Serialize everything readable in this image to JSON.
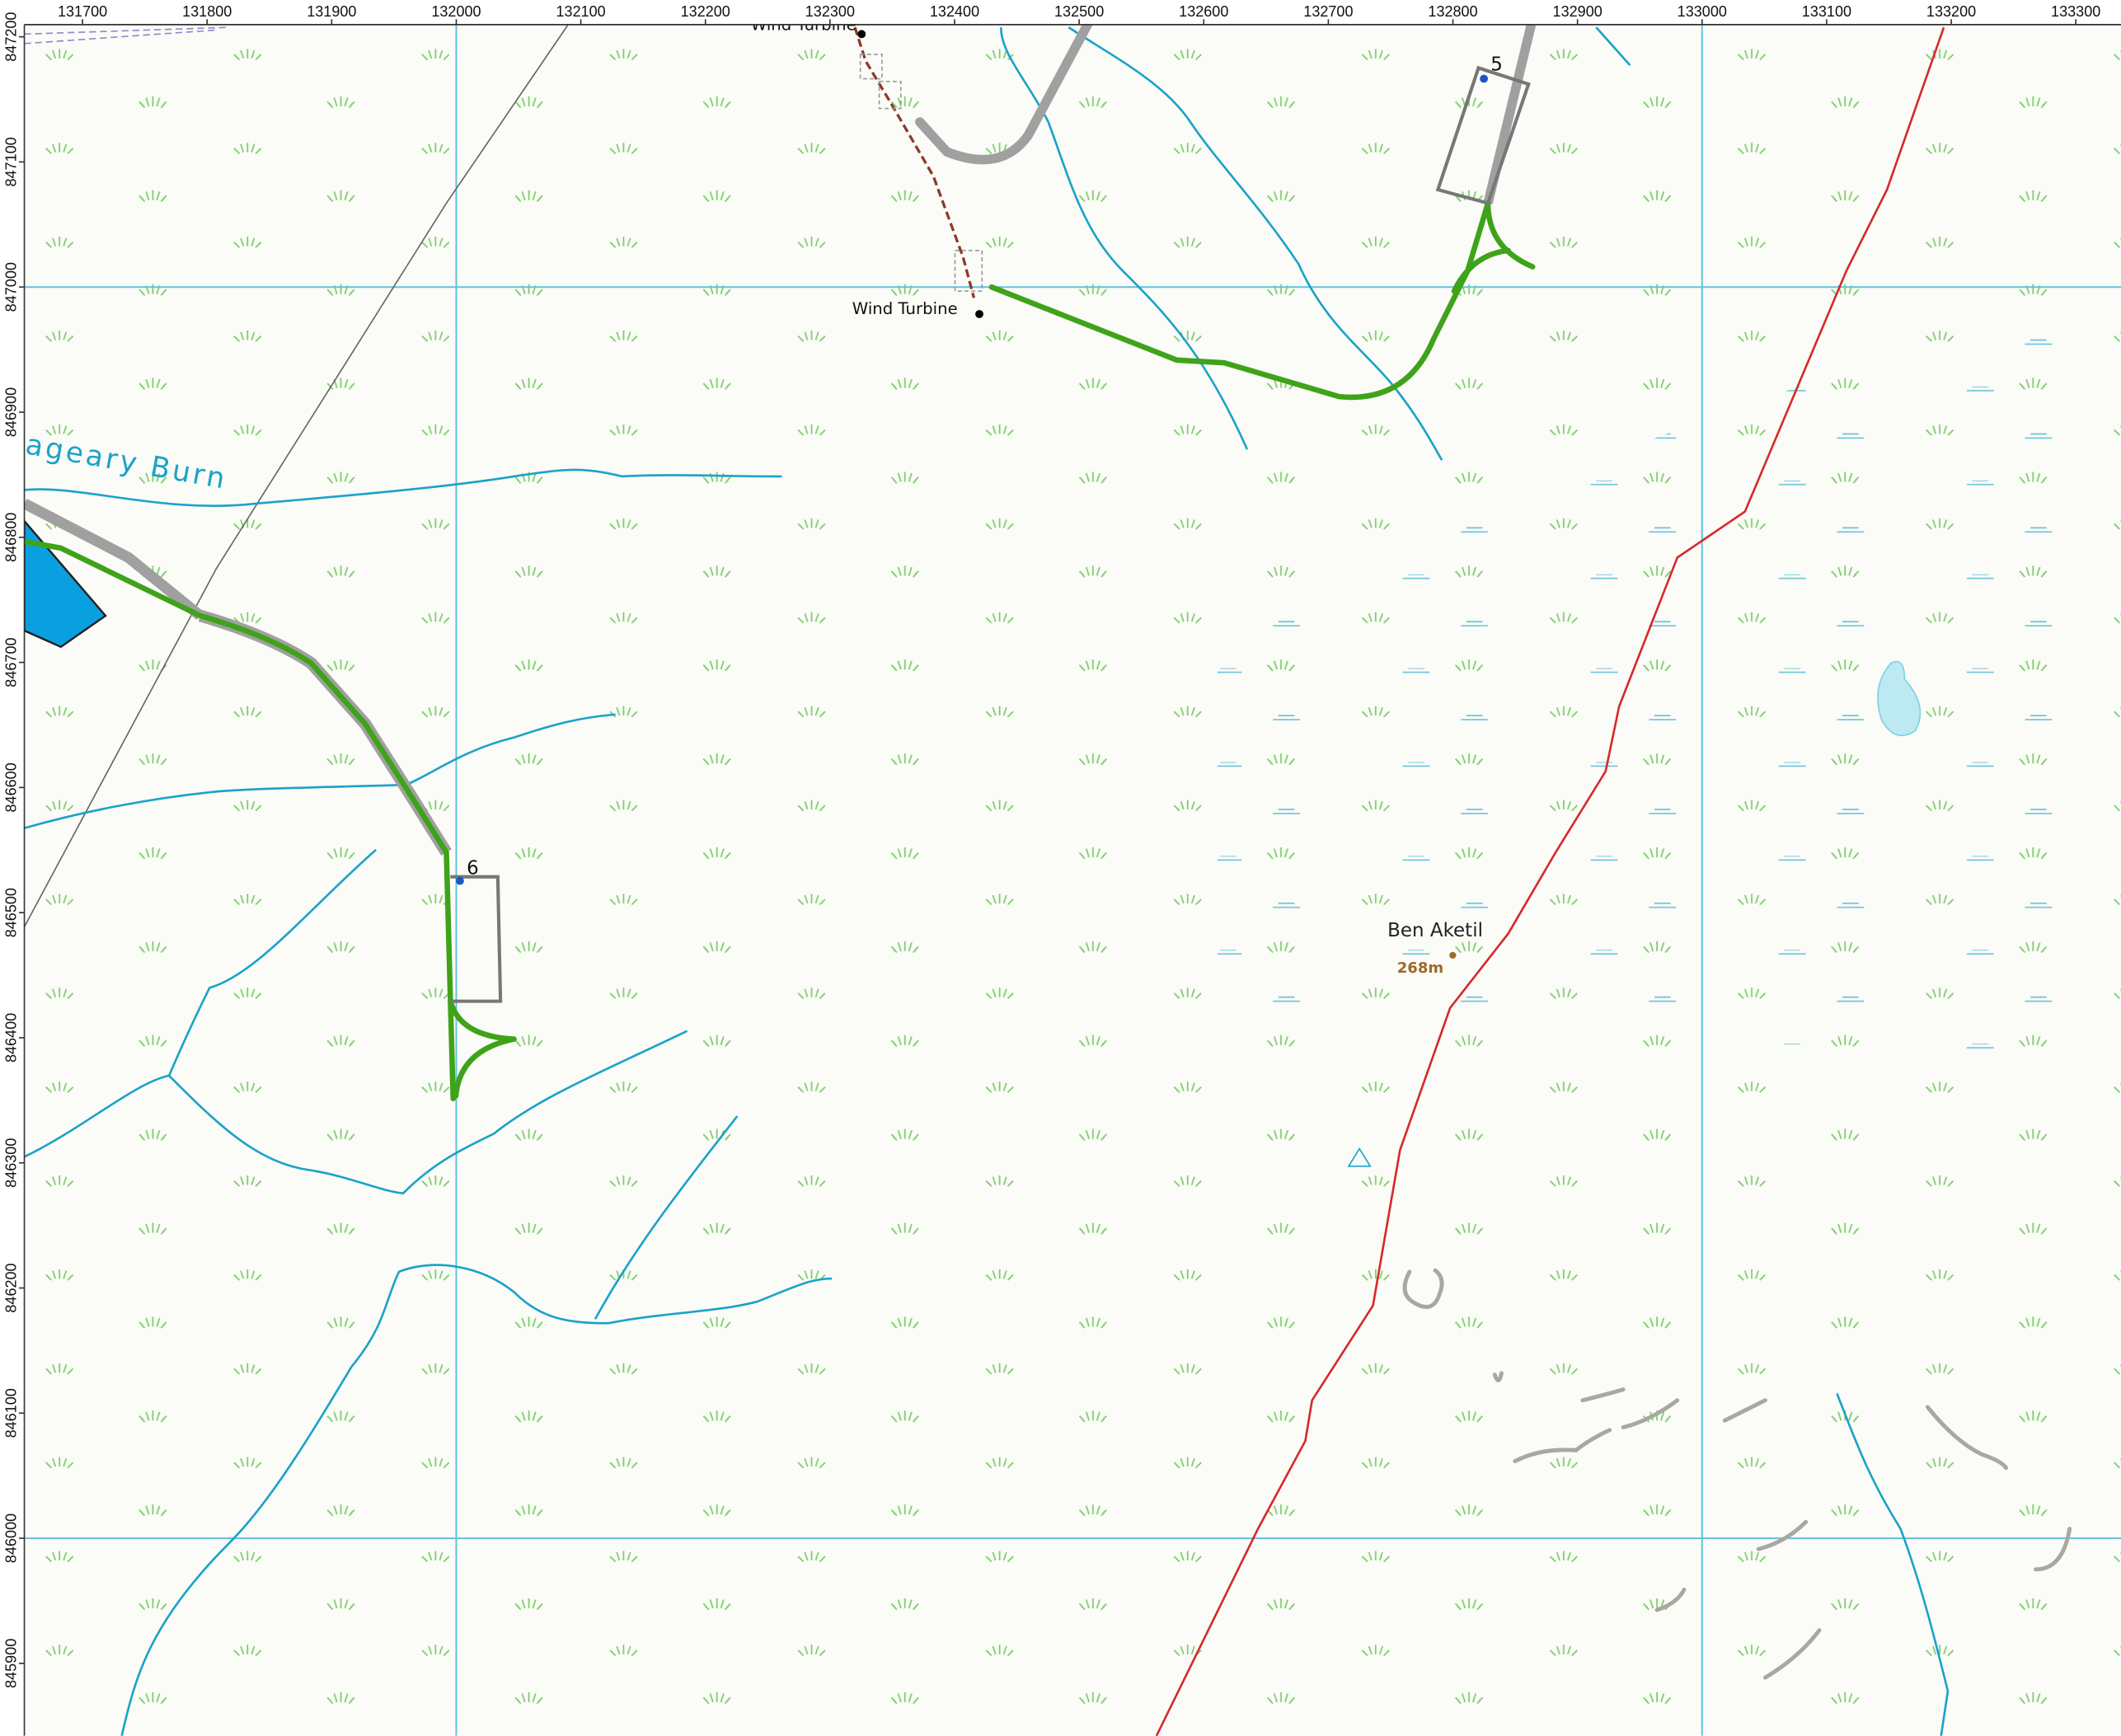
{
  "x_axis": {
    "ticks": [
      131700,
      131800,
      131900,
      132000,
      132100,
      132200,
      132300,
      132400,
      132500,
      132600,
      132700,
      132800,
      132900,
      133000,
      133100,
      133200,
      133300
    ]
  },
  "y_axis": {
    "ticks": [
      847200,
      847100,
      847000,
      846900,
      846800,
      846700,
      846600,
      846500,
      846400,
      846300,
      846200,
      846100,
      846000,
      845900
    ]
  },
  "labels": {
    "wind_turbine_top": "Wind Turbine",
    "wind_turbine": "Wind Turbine",
    "burn": "ageary Burn",
    "turbine_5": "5",
    "turbine_6": "6",
    "summit": "Ben Aketil",
    "height": "268m"
  }
}
